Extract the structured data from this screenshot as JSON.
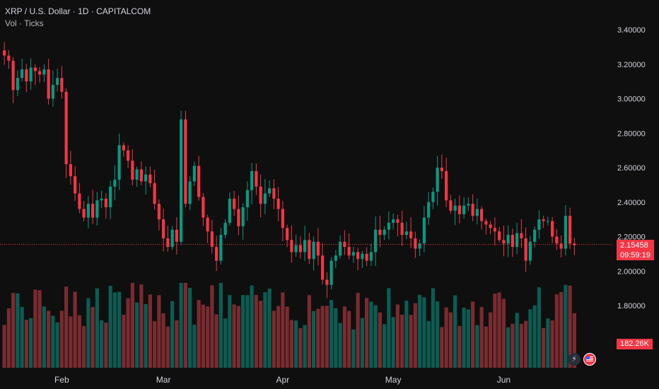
{
  "legend": {
    "title": "XRP / U.S. Dollar · 1D · CAPITALCOM",
    "indicator": "Vol · Ticks"
  },
  "price_badge": {
    "price": "2.15458",
    "countdown": "09:59:19"
  },
  "volume_badge": {
    "value": "182.26K"
  },
  "colors": {
    "up": "#089981",
    "down": "#f23645",
    "vol_up": "#0b5c52",
    "vol_down": "#7a2b30",
    "bg": "#0f0f0f"
  },
  "icons": [
    "flash-icon",
    "us-flag-icon"
  ],
  "chart_data": {
    "type": "candlestick",
    "title": "XRP / U.S. Dollar · 1D · CAPITALCOM",
    "y_ticks": [
      "3.40000",
      "3.20000",
      "3.00000",
      "2.80000",
      "2.60000",
      "2.40000",
      "2.20000",
      "2.00000",
      "1.80000"
    ],
    "ylim": [
      1.66,
      3.44
    ],
    "x_ticks": [
      "Feb",
      "Mar",
      "Apr",
      "May",
      "Jun"
    ],
    "last_price": 2.15458,
    "closes": [
      3.25,
      3.22,
      3.05,
      3.12,
      3.17,
      3.1,
      3.18,
      3.16,
      3.14,
      3.17,
      3.0,
      3.08,
      3.12,
      3.04,
      2.62,
      2.55,
      2.45,
      2.36,
      2.31,
      2.39,
      2.31,
      2.41,
      2.42,
      2.37,
      2.49,
      2.53,
      2.73,
      2.7,
      2.64,
      2.53,
      2.59,
      2.52,
      2.56,
      2.51,
      2.39,
      2.3,
      2.19,
      2.14,
      2.24,
      2.17,
      2.88,
      2.39,
      2.52,
      2.61,
      2.43,
      2.31,
      2.23,
      2.14,
      2.06,
      2.21,
      2.28,
      2.42,
      2.36,
      2.26,
      2.37,
      2.47,
      2.58,
      2.49,
      2.39,
      2.45,
      2.48,
      2.42,
      2.36,
      2.25,
      2.18,
      2.11,
      2.15,
      2.11,
      2.18,
      2.07,
      2.17,
      2.09,
      1.95,
      1.92,
      2.06,
      2.09,
      2.17,
      2.14,
      2.09,
      2.11,
      2.07,
      2.1,
      2.06,
      2.11,
      2.24,
      2.21,
      2.24,
      2.28,
      2.3,
      2.28,
      2.21,
      2.23,
      2.19,
      2.13,
      2.16,
      2.31,
      2.4,
      2.46,
      2.6,
      2.58,
      2.41,
      2.35,
      2.38,
      2.33,
      2.38,
      2.39,
      2.32,
      2.36,
      2.29,
      2.27,
      2.25,
      2.23,
      2.18,
      2.16,
      2.21,
      2.14,
      2.22,
      2.19,
      2.06,
      2.17,
      2.24,
      2.3,
      2.29,
      2.29,
      2.2,
      2.16,
      2.13,
      2.32,
      2.16,
      2.15
    ],
    "series": [
      {
        "name": "Vol · Ticks",
        "note": "volume bars, relative"
      }
    ]
  }
}
